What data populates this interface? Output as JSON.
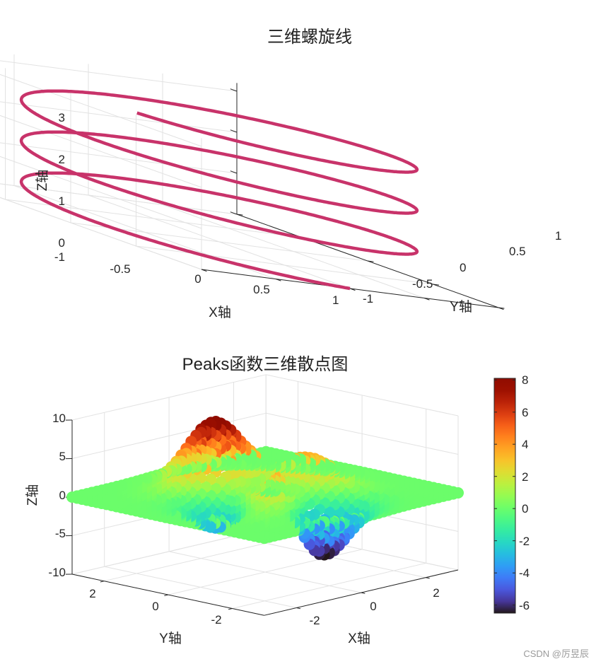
{
  "colors": {
    "helix_line": "#c8336a",
    "colormap": "turbo",
    "peaks_plane": "#74f45a"
  },
  "watermark": "CSDN @厉昱辰",
  "chart_data": [
    {
      "type": "line3d",
      "title": "三维螺旋线",
      "xlabel": "X轴",
      "ylabel": "Y轴",
      "zlabel": "Z轴",
      "xlim": [
        -1,
        1
      ],
      "ylim": [
        -1,
        1
      ],
      "zlim": [
        0,
        3.2
      ],
      "xticks": [
        "-1",
        "-0.5",
        "0",
        "0.5",
        "1"
      ],
      "yticks": [
        "-1",
        "-0.5",
        "0",
        "0.5",
        "1"
      ],
      "zticks": [
        "0",
        "1",
        "2",
        "3"
      ],
      "grid": true,
      "series": [
        {
          "function": "x = cos(t), y = sin(t), z = t / (2π)",
          "t_range": [
            0,
            20
          ],
          "color": "#c8336a"
        }
      ]
    },
    {
      "type": "scatter3d",
      "title": "Peaks函数三维散点图",
      "xlabel": "X轴",
      "ylabel": "Y轴",
      "zlabel": "Z轴",
      "xlim": [
        -3,
        3
      ],
      "ylim": [
        -3,
        3
      ],
      "zlim": [
        -10,
        10
      ],
      "xticks": [
        "-2",
        "0",
        "2"
      ],
      "yticks": [
        "2",
        "0",
        "-2"
      ],
      "zticks": [
        "10",
        "5",
        "0",
        "-5",
        "-10"
      ],
      "grid": true,
      "series": [
        {
          "function": "z = peaks(x, y)",
          "x_range": [
            -3,
            3
          ],
          "y_range": [
            -3,
            3
          ]
        }
      ],
      "colorbar": {
        "range": [
          -6.5,
          8.1
        ],
        "ticks": [
          "8",
          "6",
          "4",
          "2",
          "0",
          "-2",
          "-4",
          "-6"
        ],
        "colormap": "turbo"
      }
    }
  ]
}
